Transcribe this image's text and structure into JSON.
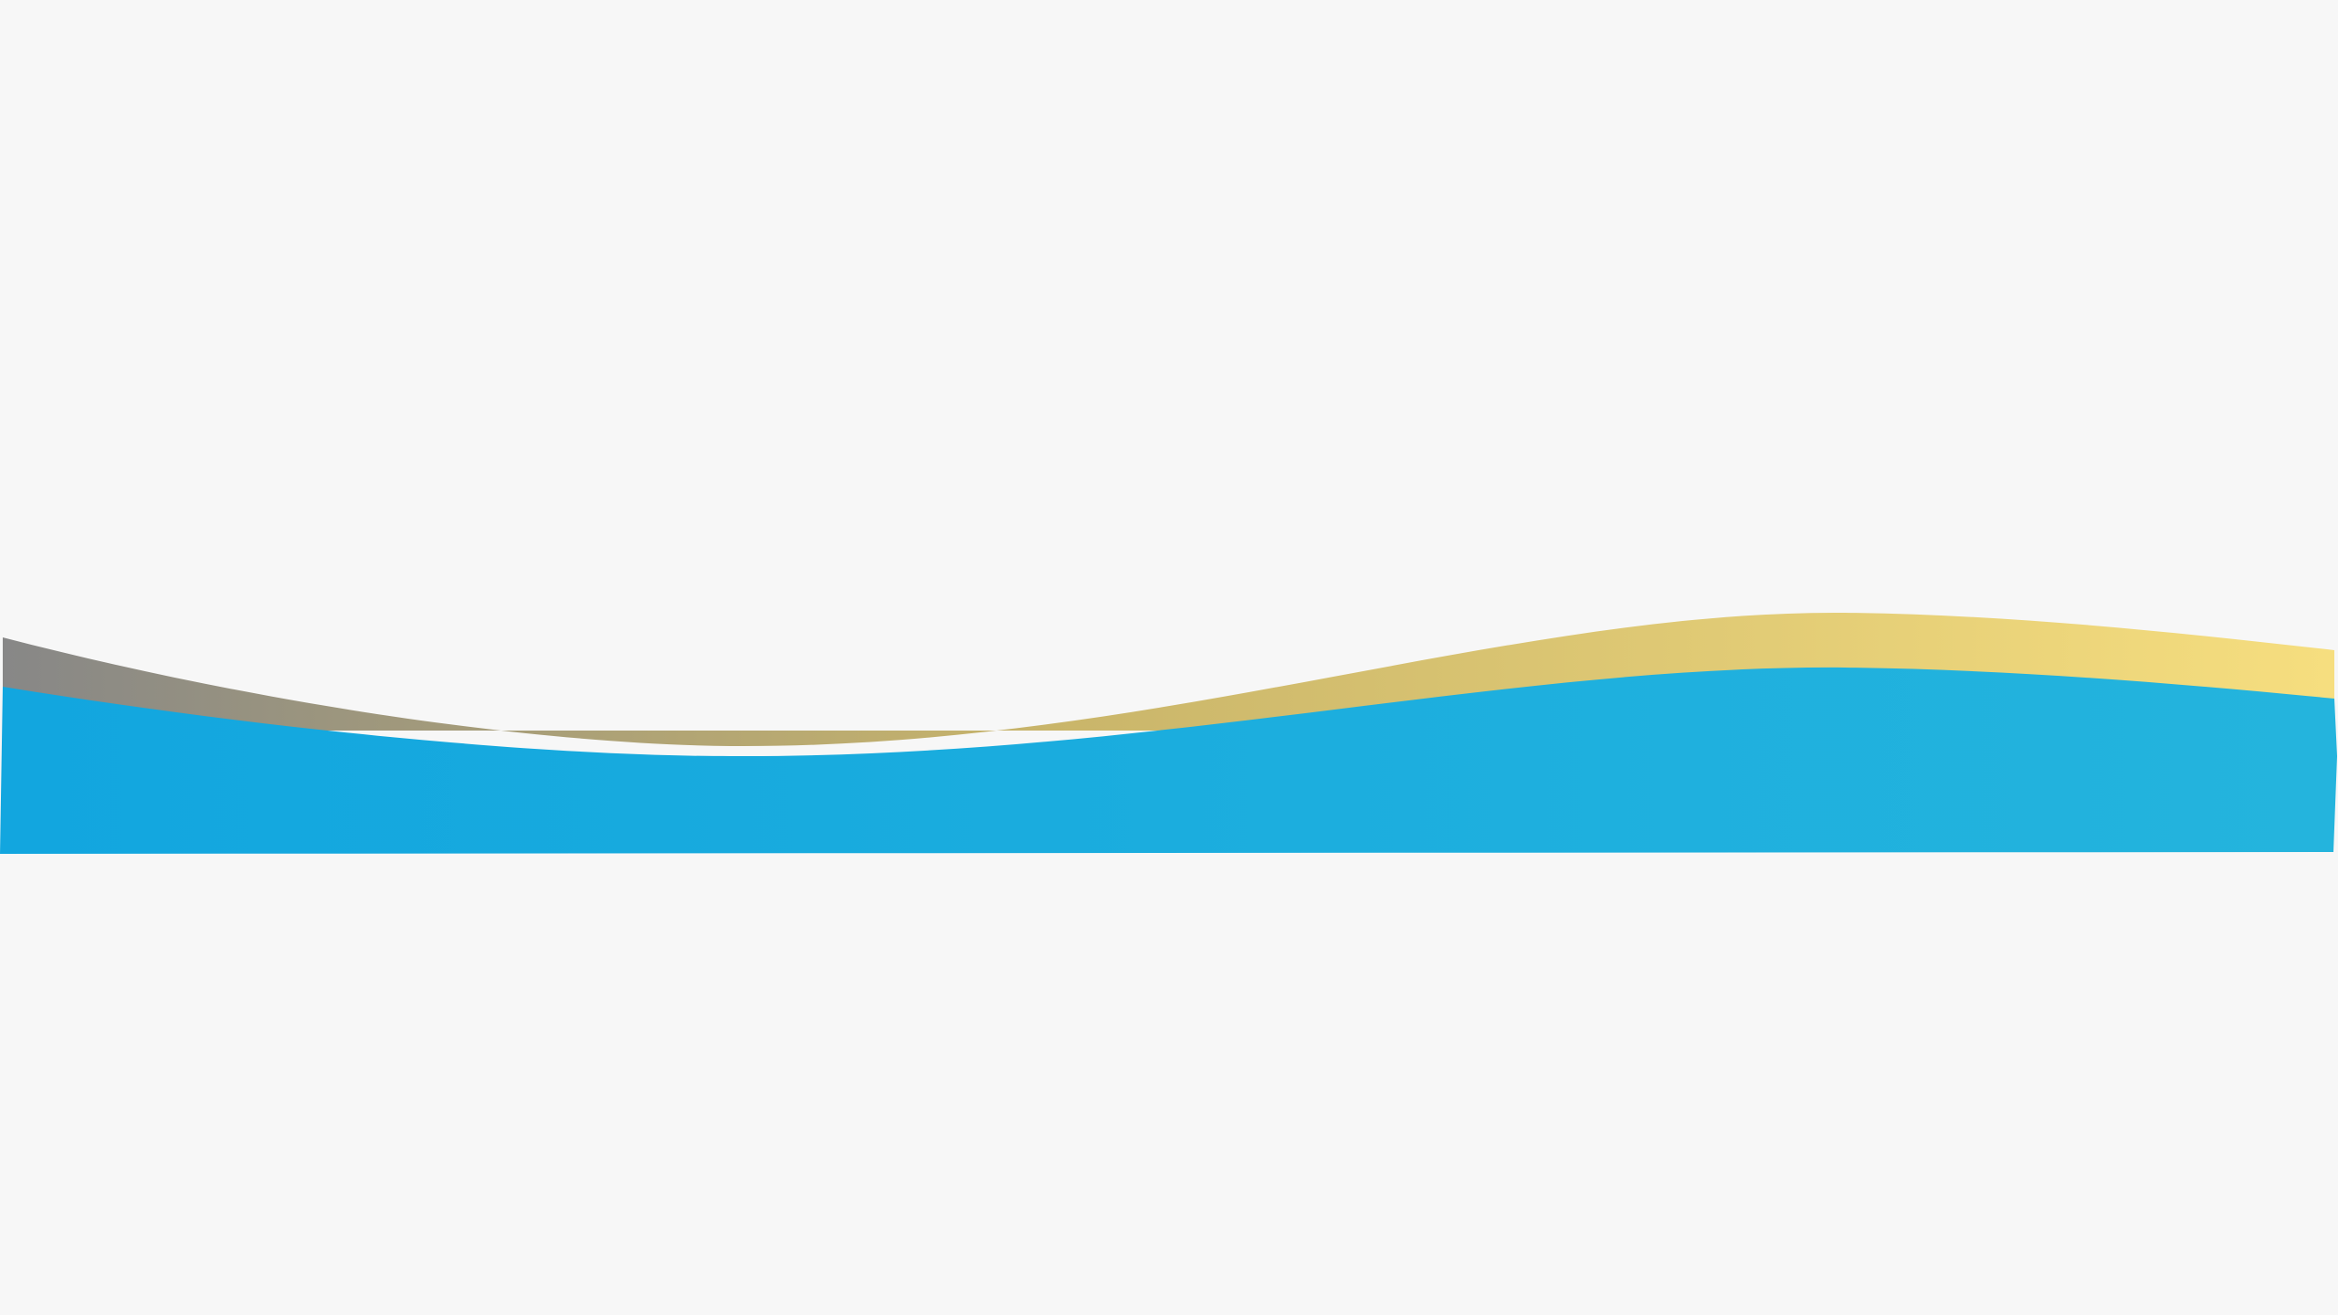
{
  "theme": {
    "background": "#F7F7F7",
    "gold_wave_start": "#878787",
    "gold_wave_mid": "#C9B56A",
    "gold_wave_end": "#F6DE7F",
    "blue_wave_start": "#12A6DF",
    "blue_wave_end": "#24B4DD"
  },
  "artwork": {
    "layers": [
      "gold-wave",
      "blue-wave"
    ]
  }
}
